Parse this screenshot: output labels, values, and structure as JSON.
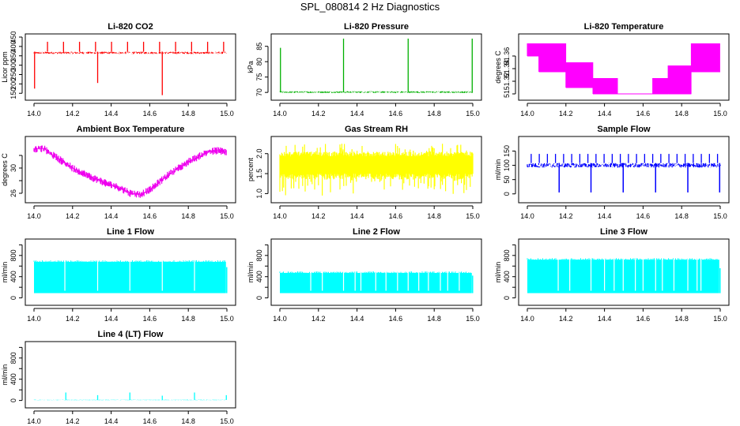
{
  "page_title": "SPL_080814  2 Hz Diagnostics",
  "chart_data": [
    {
      "type": "line",
      "title": "Li-820 CO2",
      "xlabel": "",
      "ylabel": "Licor ppm",
      "color": "#ff0000",
      "xlim": [
        14.0,
        15.0
      ],
      "ylim": [
        130,
        450
      ],
      "xticks": [
        14.0,
        14.2,
        14.4,
        14.6,
        14.8,
        15.0
      ],
      "xtick_labels": [
        "14.0",
        "14.2",
        "14.4",
        "14.6",
        "14.8",
        "15.0"
      ],
      "yticks": [
        150,
        200,
        250,
        300,
        350,
        400,
        450
      ],
      "ytick_labels": [
        "150",
        "200",
        "250",
        "300",
        "350",
        "400",
        "450"
      ],
      "baseline": {
        "low": 360,
        "high": 372
      },
      "spikes": [
        {
          "x": 14.003,
          "low": 175,
          "high": 372
        },
        {
          "x": 14.33,
          "low": 205,
          "high": 372
        },
        {
          "x": 14.665,
          "low": 140,
          "high": 372
        }
      ],
      "periodic_spikes": {
        "start": 14.07,
        "step": 0.083,
        "peak": 425
      }
    },
    {
      "type": "line",
      "title": "Li-820 Pressure",
      "xlabel": "",
      "ylabel": "kPa",
      "color": "#00b000",
      "xlim": [
        14.0,
        15.0
      ],
      "ylim": [
        68.5,
        88
      ],
      "xticks": [
        14.0,
        14.2,
        14.4,
        14.6,
        14.8,
        15.0
      ],
      "xtick_labels": [
        "14.0",
        "14.2",
        "14.4",
        "14.6",
        "14.8",
        "15.0"
      ],
      "yticks": [
        70,
        75,
        80,
        85
      ],
      "ytick_labels": [
        "70",
        "75",
        "80",
        "85"
      ],
      "baseline": {
        "low": 69.8,
        "high": 70.4
      },
      "spikes": [
        {
          "x": 14.003,
          "low": 70,
          "high": 84.5
        },
        {
          "x": 14.33,
          "low": 70,
          "high": 87.5
        },
        {
          "x": 14.665,
          "low": 70,
          "high": 87.5
        },
        {
          "x": 14.997,
          "low": 70,
          "high": 87.5
        }
      ]
    },
    {
      "type": "line",
      "title": "Li-820 Temperature",
      "xlabel": "",
      "ylabel": "degrees C",
      "color": "#ff00ff",
      "xlim": [
        14.0,
        15.0
      ],
      "ylim": [
        51.295,
        51.39
      ],
      "xticks": [
        14.0,
        14.2,
        14.4,
        14.6,
        14.8,
        15.0
      ],
      "xtick_labels": [
        "14.0",
        "14.2",
        "14.4",
        "14.6",
        "14.8",
        "15.0"
      ],
      "yticks": [
        51.3,
        51.32,
        51.34,
        51.36
      ],
      "ytick_labels": [
        "51",
        "51.32",
        "51.34",
        "51.36"
      ],
      "bands": [
        {
          "x0": 14.0,
          "x1": 14.06,
          "low": 51.36,
          "high": 51.38
        },
        {
          "x0": 14.06,
          "x1": 14.2,
          "low": 51.335,
          "high": 51.38
        },
        {
          "x0": 14.2,
          "x1": 14.34,
          "low": 51.31,
          "high": 51.35
        },
        {
          "x0": 14.34,
          "x1": 14.47,
          "low": 51.3,
          "high": 51.325
        },
        {
          "x0": 14.47,
          "x1": 14.65,
          "low": 51.3,
          "high": 51.3
        },
        {
          "x0": 14.65,
          "x1": 14.73,
          "low": 51.3,
          "high": 51.325
        },
        {
          "x0": 14.73,
          "x1": 14.85,
          "low": 51.3,
          "high": 51.345
        },
        {
          "x0": 14.85,
          "x1": 15.0,
          "low": 51.335,
          "high": 51.38
        }
      ]
    },
    {
      "type": "line",
      "title": "Ambient Box Temperature",
      "xlabel": "",
      "ylabel": "degrees C",
      "color": "#ee00ee",
      "xlim": [
        14.0,
        15.0
      ],
      "ylim": [
        25,
        34.5
      ],
      "xticks": [
        14.0,
        14.2,
        14.4,
        14.6,
        14.8,
        15.0
      ],
      "xtick_labels": [
        "14.0",
        "14.2",
        "14.4",
        "14.6",
        "14.8",
        "15.0"
      ],
      "yticks": [
        26,
        28,
        30,
        32
      ],
      "ytick_labels": [
        "26",
        "",
        "30",
        ""
      ],
      "curve": {
        "x": [
          14.0,
          14.05,
          14.1,
          14.2,
          14.3,
          14.4,
          14.45,
          14.5,
          14.55,
          14.6,
          14.65,
          14.7,
          14.8,
          14.9,
          14.95,
          15.0
        ],
        "y": [
          33.0,
          33.1,
          32.0,
          30.0,
          28.5,
          27.3,
          26.8,
          26.0,
          25.8,
          26.5,
          27.8,
          29.0,
          31.0,
          32.5,
          32.8,
          32.5
        ]
      },
      "noise": 0.6
    },
    {
      "type": "line",
      "title": "Gas Stream RH",
      "xlabel": "",
      "ylabel": "percent",
      "color": "#ffff00",
      "xlim": [
        14.0,
        15.0
      ],
      "ylim": [
        0.85,
        2.35
      ],
      "xticks": [
        14.0,
        14.2,
        14.4,
        14.6,
        14.8,
        15.0
      ],
      "xtick_labels": [
        "14.0",
        "14.2",
        "14.4",
        "14.6",
        "14.8",
        "15.0"
      ],
      "yticks": [
        1.0,
        1.5,
        2.0
      ],
      "ytick_labels": [
        "1.0",
        "1.5",
        "2.0"
      ],
      "band": {
        "low": 1.35,
        "high": 2.05,
        "min": 0.95,
        "max": 2.25
      }
    },
    {
      "type": "line",
      "title": "Sample Flow",
      "xlabel": "",
      "ylabel": "ml/min",
      "color": "#0000ff",
      "xlim": [
        14.0,
        15.0
      ],
      "ylim": [
        -20,
        190
      ],
      "xticks": [
        14.0,
        14.2,
        14.4,
        14.6,
        14.8,
        15.0
      ],
      "xtick_labels": [
        "14.0",
        "14.2",
        "14.4",
        "14.6",
        "14.8",
        "15.0"
      ],
      "yticks": [
        0,
        50,
        100,
        150
      ],
      "ytick_labels": [
        "0",
        "50",
        "100",
        "150"
      ],
      "baseline": {
        "low": 92,
        "high": 108
      },
      "dips": [
        14.165,
        14.33,
        14.497,
        14.665,
        14.832,
        14.997
      ],
      "dip_low": 5,
      "periodic_spikes": {
        "start": 14.02,
        "step": 0.042,
        "peak": 140
      }
    },
    {
      "type": "area",
      "title": "Line 1 Flow",
      "xlabel": "",
      "ylabel": "ml/min",
      "color": "#00ffff",
      "xlim": [
        14.0,
        15.0
      ],
      "ylim": [
        -80,
        1050
      ],
      "xticks": [
        14.0,
        14.2,
        14.4,
        14.6,
        14.8,
        15.0
      ],
      "xtick_labels": [
        "14.0",
        "14.2",
        "14.4",
        "14.6",
        "14.8",
        "15.0"
      ],
      "yticks": [
        0,
        200,
        400,
        600,
        800,
        1000
      ],
      "ytick_labels": [
        "0",
        "",
        "400",
        "",
        "800",
        ""
      ],
      "band": {
        "low": 90,
        "high": 680
      },
      "gaps": [
        14.16,
        14.33,
        14.497,
        14.665,
        14.832
      ],
      "tail": {
        "x": 14.995,
        "value": 580
      }
    },
    {
      "type": "area",
      "title": "Line 2 Flow",
      "xlabel": "",
      "ylabel": "ml/min",
      "color": "#00ffff",
      "xlim": [
        14.0,
        15.0
      ],
      "ylim": [
        -80,
        1050
      ],
      "xticks": [
        14.0,
        14.2,
        14.4,
        14.6,
        14.8,
        15.0
      ],
      "xtick_labels": [
        "14.0",
        "14.2",
        "14.4",
        "14.6",
        "14.8",
        "15.0"
      ],
      "yticks": [
        0,
        200,
        400,
        600,
        800,
        1000
      ],
      "ytick_labels": [
        "0",
        "",
        "400",
        "",
        "800",
        ""
      ],
      "band": {
        "low": 90,
        "high": 470
      },
      "gaps": [
        14.16,
        14.22,
        14.33,
        14.39,
        14.42,
        14.497,
        14.55,
        14.61,
        14.665,
        14.72,
        14.77,
        14.832,
        14.87,
        14.93
      ],
      "tail": {
        "x": 14.995,
        "value": 420
      }
    },
    {
      "type": "area",
      "title": "Line 3 Flow",
      "xlabel": "",
      "ylabel": "ml/min",
      "color": "#00ffff",
      "xlim": [
        14.0,
        15.0
      ],
      "ylim": [
        -80,
        1050
      ],
      "xticks": [
        14.0,
        14.2,
        14.4,
        14.6,
        14.8,
        15.0
      ],
      "xtick_labels": [
        "14.0",
        "14.2",
        "14.4",
        "14.6",
        "14.8",
        "15.0"
      ],
      "yticks": [
        0,
        200,
        400,
        600,
        800,
        1000
      ],
      "ytick_labels": [
        "0",
        "",
        "400",
        "",
        "800",
        ""
      ],
      "band": {
        "low": 90,
        "high": 720
      },
      "gaps": [
        14.16,
        14.22,
        14.33,
        14.4,
        14.45,
        14.497,
        14.56,
        14.6,
        14.665,
        14.7,
        14.76,
        14.832,
        14.88,
        14.9
      ],
      "tail": {
        "x": 14.995,
        "value": 560
      }
    },
    {
      "type": "line",
      "title": "Line 4 (LT) Flow",
      "xlabel": "",
      "ylabel": "ml/min",
      "color": "#00ffff",
      "xlim": [
        14.0,
        15.0
      ],
      "ylim": [
        -80,
        1050
      ],
      "xticks": [
        14.0,
        14.2,
        14.4,
        14.6,
        14.8,
        15.0
      ],
      "xtick_labels": [
        "14.0",
        "14.2",
        "14.4",
        "14.6",
        "14.8",
        "15.0"
      ],
      "yticks": [
        0,
        200,
        400,
        600,
        800,
        1000
      ],
      "ytick_labels": [
        "0",
        "",
        "400",
        "",
        "800",
        ""
      ],
      "baseline": {
        "low": 5,
        "high": 15
      },
      "spikes": [
        {
          "x": 14.165,
          "low": 10,
          "high": 150
        },
        {
          "x": 14.33,
          "low": 10,
          "high": 100
        },
        {
          "x": 14.497,
          "low": 10,
          "high": 150
        },
        {
          "x": 14.665,
          "low": 10,
          "high": 90
        },
        {
          "x": 14.832,
          "low": 10,
          "high": 150
        },
        {
          "x": 14.997,
          "low": 10,
          "high": 100
        }
      ]
    }
  ]
}
